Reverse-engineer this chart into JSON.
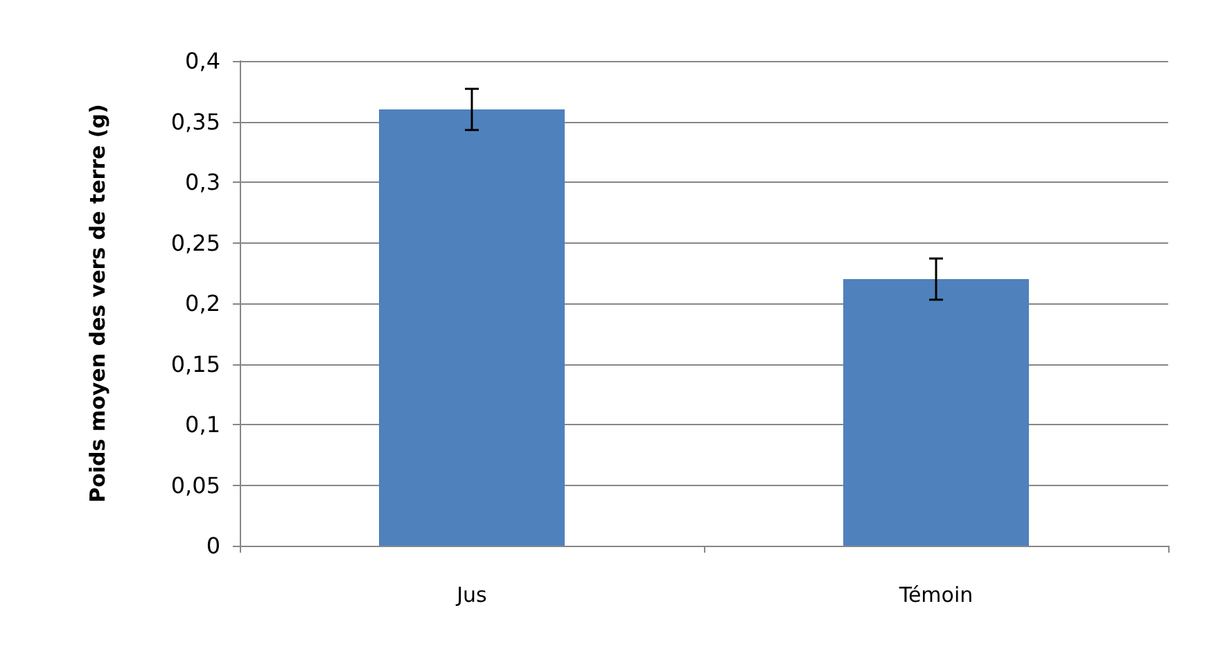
{
  "chart_data": {
    "type": "bar",
    "ylabel": "Poids moyen des vers de terre (g)",
    "categories": [
      "Jus",
      "Témoin"
    ],
    "values": [
      0.36,
      0.22
    ],
    "errors": [
      0.017,
      0.017
    ],
    "color": "#4f81bd",
    "ylim": [
      0,
      0.4
    ],
    "yticks": [
      {
        "value": 0,
        "label": "0"
      },
      {
        "value": 0.05,
        "label": "0,05"
      },
      {
        "value": 0.1,
        "label": "0,1"
      },
      {
        "value": 0.15,
        "label": "0,15"
      },
      {
        "value": 0.2,
        "label": "0,2"
      },
      {
        "value": 0.25,
        "label": "0,25"
      },
      {
        "value": 0.3,
        "label": "0,3"
      },
      {
        "value": 0.35,
        "label": "0,35"
      },
      {
        "value": 0.4,
        "label": "0,4"
      }
    ],
    "grid": true
  }
}
